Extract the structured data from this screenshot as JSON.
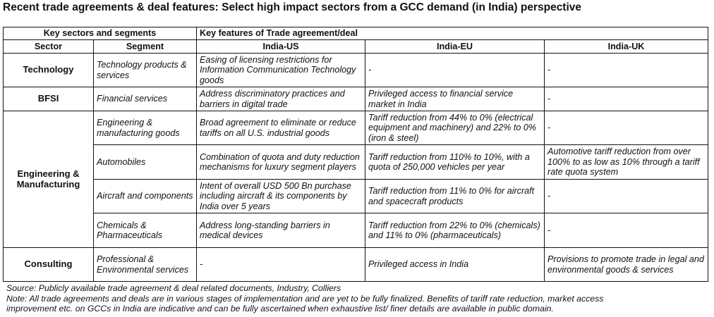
{
  "title": "Recent trade agreements & deal features: Select high impact sectors from a GCC demand (in India) perspective",
  "table": {
    "group_headers": {
      "sectors_segments": "Key sectors and segments",
      "key_features": "Key features of Trade agreement/deal"
    },
    "columns": {
      "sector": "Sector",
      "segment": "Segment",
      "india_us": "India-US",
      "india_eu": "India-EU",
      "india_uk": "India-UK"
    },
    "sectors": {
      "technology": "Technology",
      "bfsi": "BFSI",
      "engineering": "Engineering & Manufacturing",
      "consulting": "Consulting"
    },
    "rows": [
      {
        "segment": "Technology products & services",
        "india_us": "Easing of licensing restrictions for Information Communication Technology goods",
        "india_eu": "-",
        "india_uk": "-"
      },
      {
        "segment": "Financial services",
        "india_us": "Address discriminatory practices and barriers in digital trade",
        "india_eu": "Privileged access to financial service market in India",
        "india_uk": "-"
      },
      {
        "segment": "Engineering & manufacturing goods",
        "india_us": "Broad agreement to eliminate or reduce tariffs on all U.S. industrial goods",
        "india_eu": "Tariff reduction from 44% to 0% (electrical equipment and machinery) and 22% to 0% (iron & steel)",
        "india_uk": "-"
      },
      {
        "segment": "Automobiles",
        "india_us": "Combination of quota and duty reduction mechanisms for luxury segment players",
        "india_eu": "Tariff reduction from 110% to 10%, with a quota of 250,000 vehicles per year",
        "india_uk": "Automotive tariff reduction from over 100% to as low as 10% through a tariff rate quota system"
      },
      {
        "segment": "Aircraft and components",
        "india_us": "Intent of overall USD 500 Bn purchase including aircraft & its components by India over 5 years",
        "india_eu": "Tariff reduction from 11% to 0% for aircraft and spacecraft products",
        "india_uk": "-"
      },
      {
        "segment": "Chemicals & Pharmaceuticals",
        "india_us": "Address long-standing barriers in medical devices",
        "india_eu": "Tariff reduction from 22% to 0% (chemicals) and 11% to 0% (pharmaceuticals)",
        "india_uk": "-"
      },
      {
        "segment": "Professional & Environmental services",
        "india_us": "-",
        "india_eu": "Privileged access in India",
        "india_uk": "Provisions to promote trade in legal and environmental goods & services"
      }
    ]
  },
  "footer": {
    "source": "Source: Publicly available trade agreement & deal related documents, Industry, Colliers",
    "note_line1": "Note: All trade agreements and deals are in various stages of implementation and are yet to be fully finalized. Benefits of tariff rate reduction, market access",
    "note_line2": "improvement etc. on GCCs in India are indicative and can be fully ascertained when exhaustive list/ finer details are available in public domain."
  }
}
